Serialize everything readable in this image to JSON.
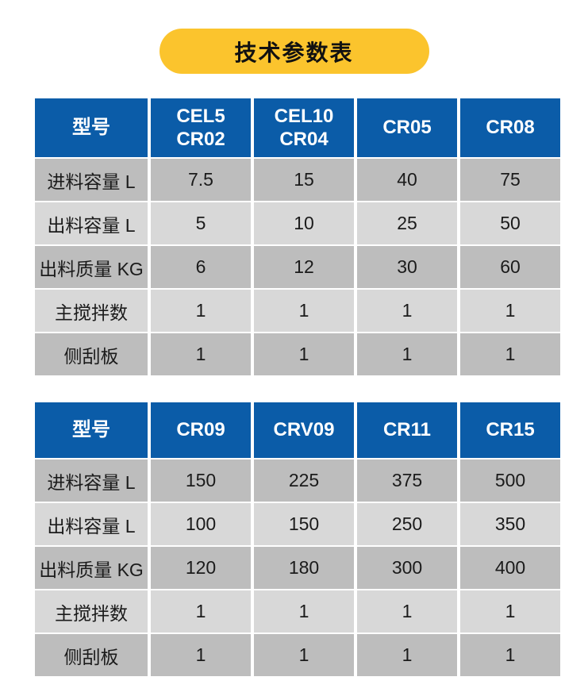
{
  "colors": {
    "badge_yellow": "#FBC42D",
    "header_blue": "#0B5CA8",
    "row_dark": "#BDBDBD",
    "row_light": "#D8D8D8",
    "text_dark": "#1B1B1B",
    "header_text": "#FFFFFF"
  },
  "title_badge": {
    "label": "技术参数表"
  },
  "chart_data": [
    {
      "type": "table",
      "name": "spec-table-1",
      "title": "技术参数表",
      "columns": [
        [
          "型号"
        ],
        [
          "CEL5",
          "CR02"
        ],
        [
          "CEL10",
          "CR04"
        ],
        [
          "CR05"
        ],
        [
          "CR08"
        ]
      ],
      "rows": [
        {
          "label": "进料容量 L",
          "values": [
            "7.5",
            "15",
            "40",
            "75"
          ]
        },
        {
          "label": "出料容量 L",
          "values": [
            "5",
            "10",
            "25",
            "50"
          ]
        },
        {
          "label": "出料质量 KG",
          "values": [
            "6",
            "12",
            "30",
            "60"
          ]
        },
        {
          "label": "主搅拌数",
          "values": [
            "1",
            "1",
            "1",
            "1"
          ]
        },
        {
          "label": "侧刮板",
          "values": [
            "1",
            "1",
            "1",
            "1"
          ]
        }
      ]
    },
    {
      "type": "table",
      "name": "spec-table-2",
      "title": "技术参数表",
      "columns": [
        [
          "型号"
        ],
        [
          "CR09"
        ],
        [
          "CRV09"
        ],
        [
          "CR11"
        ],
        [
          "CR15"
        ]
      ],
      "rows": [
        {
          "label": "进料容量 L",
          "values": [
            "150",
            "225",
            "375",
            "500"
          ]
        },
        {
          "label": "出料容量 L",
          "values": [
            "100",
            "150",
            "250",
            "350"
          ]
        },
        {
          "label": "出料质量 KG",
          "values": [
            "120",
            "180",
            "300",
            "400"
          ]
        },
        {
          "label": "主搅拌数",
          "values": [
            "1",
            "1",
            "1",
            "1"
          ]
        },
        {
          "label": "侧刮板",
          "values": [
            "1",
            "1",
            "1",
            "1"
          ]
        }
      ]
    }
  ]
}
